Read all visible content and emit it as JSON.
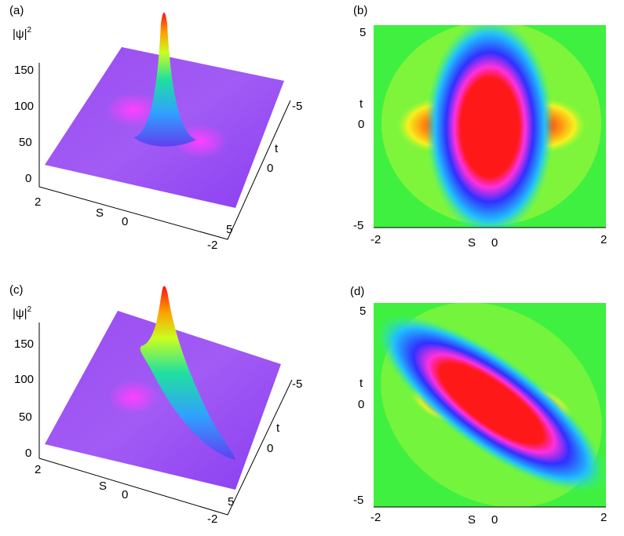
{
  "panels": [
    {
      "label": "(a)",
      "z_label": {
        "text": "|ψ|",
        "superscript": "2"
      },
      "z_ticks": [
        150,
        100,
        50,
        0
      ],
      "x_label": "S",
      "x_ticks": [
        2,
        0,
        -2
      ],
      "y_label": "t",
      "y_ticks": [
        -5,
        0,
        5
      ]
    },
    {
      "label": "(b)",
      "y_label": "t",
      "y_ticks": [
        5,
        0,
        -5
      ],
      "x_label": "S",
      "x_ticks": [
        -2,
        0,
        2
      ]
    },
    {
      "label": "(c)",
      "z_label": {
        "text": "|ψ|",
        "superscript": "2"
      },
      "z_ticks": [
        150,
        100,
        50,
        0
      ],
      "x_label": "S",
      "x_ticks": [
        2,
        0,
        -2
      ],
      "y_label": "t",
      "y_ticks": [
        -5,
        0,
        5
      ]
    },
    {
      "label": "(d)",
      "y_label": "t",
      "y_ticks": [
        5,
        0,
        -5
      ],
      "x_label": "S",
      "x_ticks": [
        -2,
        0,
        2
      ]
    }
  ]
}
